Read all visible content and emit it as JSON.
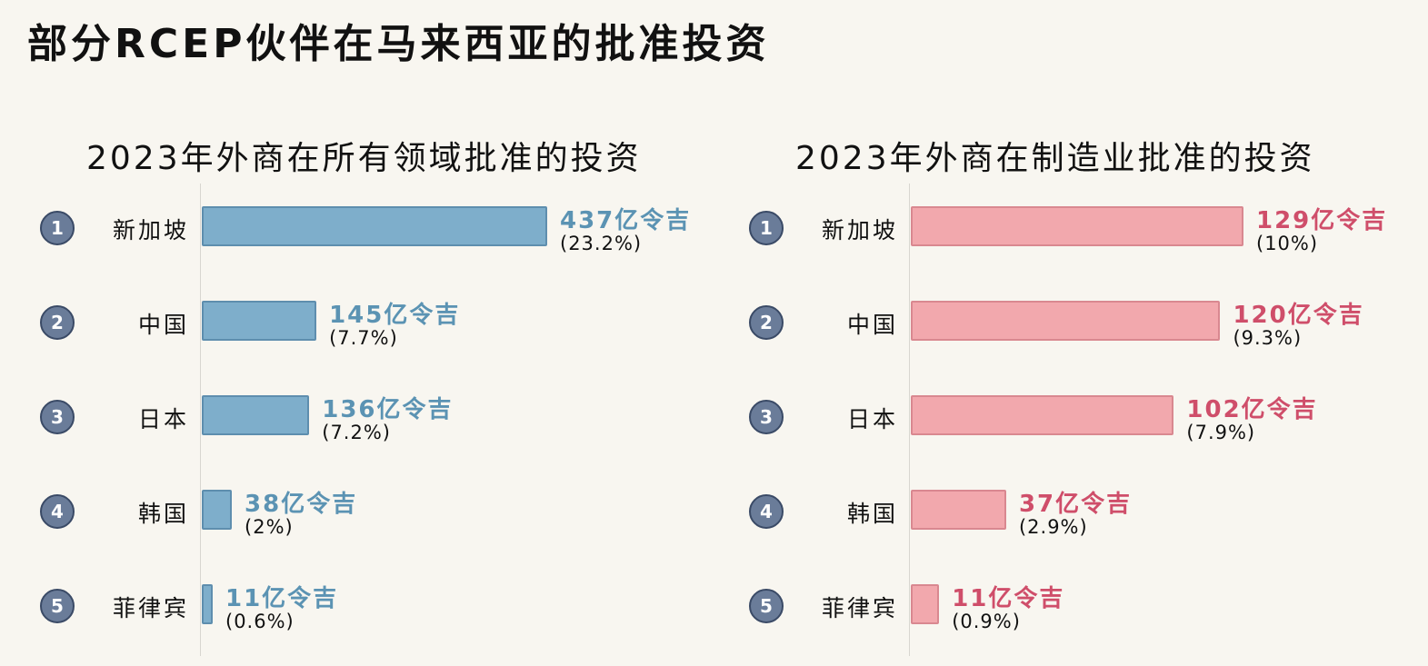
{
  "title": "部分RCEP伙伴在马来西亚的批准投资",
  "chart_data": [
    {
      "type": "bar",
      "orientation": "horizontal",
      "title": "2023年外商在所有领域批准的投资",
      "ranks": [
        "1",
        "2",
        "3",
        "4",
        "5"
      ],
      "categories": [
        "新加坡",
        "中国",
        "日本",
        "韩国",
        "菲律宾"
      ],
      "values": [
        437,
        145,
        136,
        38,
        11
      ],
      "value_labels": [
        "437亿令吉",
        "145亿令吉",
        "136亿令吉",
        "38亿令吉",
        "11亿令吉"
      ],
      "percent_labels": [
        "(23.2%)",
        "(7.7%)",
        "(7.2%)",
        "(2%)",
        "(0.6%)"
      ],
      "colors": {
        "bar": "#7eaecb",
        "value_text": "#5b93b3"
      }
    },
    {
      "type": "bar",
      "orientation": "horizontal",
      "title": "2023年外商在制造业批准的投资",
      "ranks": [
        "1",
        "2",
        "3",
        "4",
        "5"
      ],
      "categories": [
        "新加坡",
        "中国",
        "日本",
        "韩国",
        "菲律宾"
      ],
      "values": [
        129,
        120,
        102,
        37,
        11
      ],
      "value_labels": [
        "129亿令吉",
        "120亿令吉",
        "102亿令吉",
        "37亿令吉",
        "11亿令吉"
      ],
      "percent_labels": [
        "(10%)",
        "(9.3%)",
        "(7.9%)",
        "(2.9%)",
        "(0.9%)"
      ],
      "colors": {
        "bar": "#f2a8ad",
        "value_text": "#cf4e6a"
      }
    }
  ]
}
